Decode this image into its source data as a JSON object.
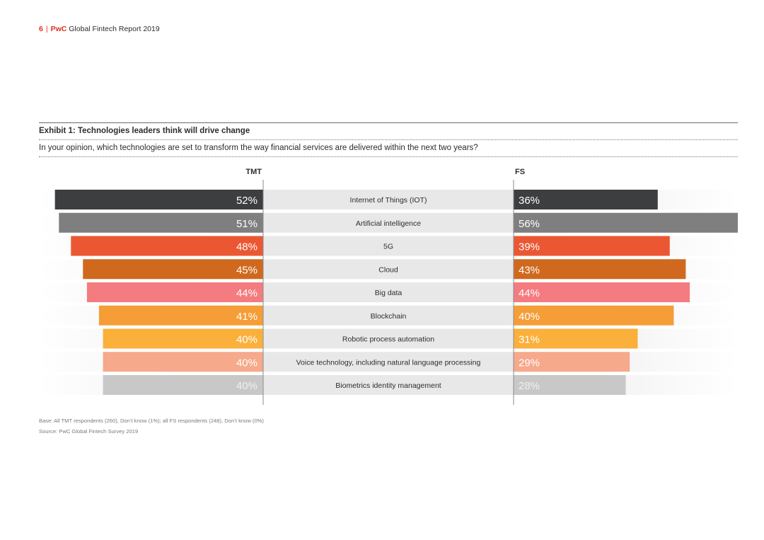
{
  "header": {
    "page_number": "6",
    "separator": "|",
    "brand": "PwC",
    "report_title": "Global Fintech Report 2019"
  },
  "exhibit": {
    "title": "Exhibit 1: Technologies leaders think will drive change",
    "question": "In your opinion, which technologies are set to transform the way financial services are delivered within the next two years?"
  },
  "chart_data": {
    "type": "bar",
    "layout": "butterfly",
    "left_header": "TMT",
    "right_header": "FS",
    "categories": [
      "Internet of Things (IOT)",
      "Artificial intelligence",
      "5G",
      "Cloud",
      "Big data",
      "Blockchain",
      "Robotic process automation",
      "Voice technology, including natural language processing",
      "Biometrics identity management"
    ],
    "series": [
      {
        "name": "TMT",
        "values": [
          52,
          51,
          48,
          45,
          44,
          41,
          40,
          40,
          40
        ],
        "labels": [
          "52%",
          "51%",
          "48%",
          "45%",
          "44%",
          "41%",
          "40%",
          "40%",
          "40%"
        ]
      },
      {
        "name": "FS",
        "values": [
          36,
          56,
          39,
          43,
          44,
          40,
          31,
          29,
          28
        ],
        "labels": [
          "36%",
          "56%",
          "39%",
          "43%",
          "44%",
          "40%",
          "31%",
          "29%",
          "28%"
        ]
      }
    ],
    "colors": [
      "#3d3e40",
      "#7f7f7f",
      "#eb5733",
      "#d0691e",
      "#f47b7f",
      "#f59d37",
      "#fbb03b",
      "#f6a98b",
      "#c8c8c8"
    ],
    "label_colors": [
      "#ffffff",
      "#ffffff",
      "#ffffff",
      "#ffffff",
      "#ffffff",
      "#ffffff",
      "#ffffff",
      "#ffffff",
      "#f0f0f0"
    ],
    "row_band_color": "#e8e8e8",
    "xlim": [
      0,
      56
    ]
  },
  "footnotes": {
    "base": "Base: All TMT respondents (260), Don’t know (1%); all FS respondents (248), Don’t know (0%)",
    "source": "Source: PwC Global Fintech Survey 2019"
  }
}
